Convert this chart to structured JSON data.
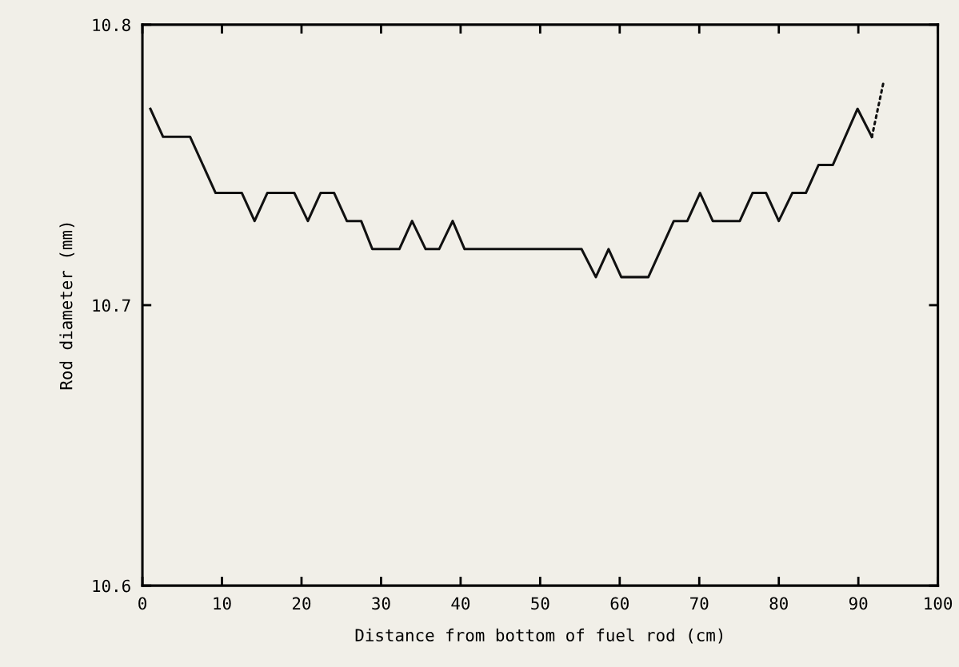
{
  "chart_data": {
    "type": "line",
    "xlabel": "Distance from bottom of fuel rod (cm)",
    "ylabel": "Rod diameter (mm)",
    "xlim": [
      0,
      100
    ],
    "xticks": [
      0,
      10,
      20,
      30,
      40,
      50,
      60,
      70,
      80,
      90,
      100
    ],
    "ylim": [
      10.6,
      10.8
    ],
    "yticks": [
      10.6,
      10.7,
      10.8
    ],
    "grid": false,
    "legend": false,
    "marker": "none",
    "series": [
      {
        "color": "#111111",
        "line_style": "solid",
        "x": [
          1.0,
          2.6,
          6.0,
          9.2,
          12.5,
          14.1,
          15.7,
          19.1,
          20.8,
          22.4,
          24.1,
          25.7,
          27.5,
          28.9,
          32.3,
          33.9,
          35.6,
          37.3,
          39.0,
          40.5,
          55.2,
          57.0,
          58.6,
          60.2,
          63.6,
          66.8,
          68.5,
          70.1,
          71.7,
          75.1,
          76.7,
          78.4,
          80.0,
          81.7,
          83.4,
          85.0,
          86.8,
          89.9,
          91.7
        ],
        "values": [
          10.77,
          10.76,
          10.76,
          10.74,
          10.74,
          10.73,
          10.74,
          10.74,
          10.73,
          10.74,
          10.74,
          10.73,
          10.73,
          10.72,
          10.72,
          10.73,
          10.72,
          10.72,
          10.73,
          10.72,
          10.72,
          10.71,
          10.72,
          10.71,
          10.71,
          10.73,
          10.73,
          10.74,
          10.73,
          10.73,
          10.74,
          10.74,
          10.73,
          10.74,
          10.74,
          10.75,
          10.75,
          10.77,
          10.76
        ]
      },
      {
        "color": "#111111",
        "line_style": "dotted",
        "x": [
          91.7,
          93.2
        ],
        "values": [
          10.76,
          10.78
        ]
      }
    ]
  }
}
